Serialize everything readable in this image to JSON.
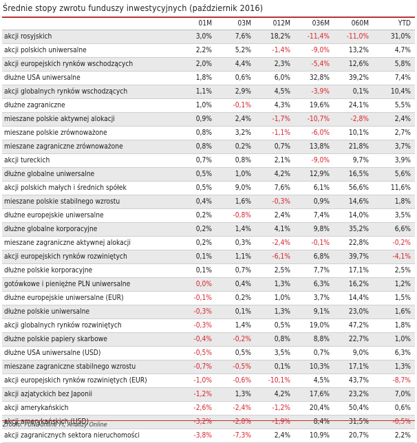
{
  "title": "Średnie stopy zwrotu funduszy inwestycyjnych (październik 2016)",
  "columns": [
    "",
    "01M",
    "03M",
    "012M",
    "036M",
    "060M",
    "YTD"
  ],
  "rows": [
    {
      "name": "akcji rosyjskich",
      "values": [
        "3,0%",
        "7,6%",
        "18,2%",
        "-11,4%",
        "-11,0%",
        "31,0%"
      ]
    },
    {
      "name": "akcji polskich uniwersalne",
      "values": [
        "2,2%",
        "5,2%",
        "-1,4%",
        "-9,0%",
        "13,2%",
        "4,7%"
      ]
    },
    {
      "name": "akcji europejskich rynków wschodzących",
      "values": [
        "2,0%",
        "4,4%",
        "2,3%",
        "-5,4%",
        "12,6%",
        "5,8%"
      ]
    },
    {
      "name": "dłużne USA uniwersalne",
      "values": [
        "1,8%",
        "0,6%",
        "6,0%",
        "32,8%",
        "39,2%",
        "7,4%"
      ]
    },
    {
      "name": "akcji globalnych rynków wschodzących",
      "values": [
        "1,1%",
        "2,9%",
        "4,5%",
        "-3,9%",
        "0,1%",
        "10,4%"
      ]
    },
    {
      "name": "dłużne zagraniczne",
      "values": [
        "1,0%",
        "-0,1%",
        "4,3%",
        "19,6%",
        "24,1%",
        "5,5%"
      ]
    },
    {
      "name": "mieszane polskie aktywnej alokacji",
      "values": [
        "0,9%",
        "2,4%",
        "-1,7%",
        "-10,7%",
        "-2,8%",
        "2,4%"
      ]
    },
    {
      "name": "mieszane polskie zrównoważone",
      "values": [
        "0,8%",
        "3,2%",
        "-1,1%",
        "-6,0%",
        "10,1%",
        "2,7%"
      ]
    },
    {
      "name": "mieszane zagraniczne zrównoważone",
      "values": [
        "0,8%",
        "0,2%",
        "0,7%",
        "13,8%",
        "21,8%",
        "3,7%"
      ]
    },
    {
      "name": "akcji tureckich",
      "values": [
        "0,7%",
        "0,8%",
        "2,1%",
        "-9,0%",
        "9,7%",
        "3,9%"
      ]
    },
    {
      "name": "dłużne globalne uniwersalne",
      "values": [
        "0,5%",
        "1,0%",
        "4,2%",
        "12,9%",
        "16,5%",
        "5,6%"
      ]
    },
    {
      "name": "akcji polskich małych i średnich spółek",
      "values": [
        "0,5%",
        "9,0%",
        "7,6%",
        "6,1%",
        "56,6%",
        "11,6%"
      ]
    },
    {
      "name": "mieszane polskie stabilnego wzrostu",
      "values": [
        "0,4%",
        "1,6%",
        "-0,3%",
        "0,9%",
        "14,6%",
        "1,8%"
      ]
    },
    {
      "name": "dłużne europejskie uniwersalne",
      "values": [
        "0,2%",
        "-0,8%",
        "2,4%",
        "7,4%",
        "14,0%",
        "3,5%"
      ]
    },
    {
      "name": "dłużne globalne korporacyjne",
      "values": [
        "0,2%",
        "1,4%",
        "4,1%",
        "9,8%",
        "35,2%",
        "6,6%"
      ]
    },
    {
      "name": "mieszane zagraniczne aktywnej alokacji",
      "values": [
        "0,2%",
        "0,3%",
        "-2,4%",
        "-0,1%",
        "22,8%",
        "-0,2%"
      ]
    },
    {
      "name": "akcji europejskich rynków rozwiniętych",
      "values": [
        "0,1%",
        "1,1%",
        "-6,1%",
        "6,8%",
        "39,7%",
        "-4,1%"
      ]
    },
    {
      "name": "dłużne polskie korporacyjne",
      "values": [
        "0,1%",
        "0,7%",
        "2,5%",
        "7,7%",
        "17,1%",
        "2,5%"
      ]
    },
    {
      "name": "gotówkowe i pieniężne PLN uniwersalne",
      "values": [
        "0,0%",
        "0,4%",
        "1,3%",
        "6,3%",
        "16,2%",
        "1,2%"
      ]
    },
    {
      "name": "dłużne europejskie uniwersalne (EUR)",
      "values": [
        "-0,1%",
        "0,2%",
        "1,0%",
        "3,7%",
        "14,4%",
        "1,5%"
      ]
    },
    {
      "name": "dłużne polskie uniwersalne",
      "values": [
        "-0,3%",
        "0,1%",
        "1,3%",
        "9,1%",
        "23,0%",
        "1,6%"
      ]
    },
    {
      "name": "akcji globalnych rynków rozwiniętych",
      "values": [
        "-0,3%",
        "1,4%",
        "0,5%",
        "19,0%",
        "47,2%",
        "1,8%"
      ]
    },
    {
      "name": "dłużne polskie papiery skarbowe",
      "values": [
        "-0,4%",
        "-0,2%",
        "0,8%",
        "8,8%",
        "22,7%",
        "1,0%"
      ]
    },
    {
      "name": "dłużne USA uniwersalne (USD)",
      "values": [
        "-0,5%",
        "0,5%",
        "3,5%",
        "0,7%",
        "9,0%",
        "6,3%"
      ]
    },
    {
      "name": "mieszane zagraniczne stabilnego wzrostu",
      "values": [
        "-0,7%",
        "-0,5%",
        "0,1%",
        "10,3%",
        "17,1%",
        "1,3%"
      ]
    },
    {
      "name": "akcji europejskich rynków rozwiniętych (EUR)",
      "values": [
        "-1,0%",
        "-0,6%",
        "-10,1%",
        "4,5%",
        "43,7%",
        "-8,7%"
      ]
    },
    {
      "name": "akcji azjatyckich bez Japonii",
      "values": [
        "-1,2%",
        "1,3%",
        "4,2%",
        "17,6%",
        "23,2%",
        "7,0%"
      ]
    },
    {
      "name": "akcji amerykańskich",
      "values": [
        "-2,6%",
        "-2,4%",
        "-1,2%",
        "20,4%",
        "50,4%",
        "0,6%"
      ]
    },
    {
      "name": "akcji amerykańskich (USD)",
      "values": [
        "-3,2%",
        "-2,8%",
        "-1,9%",
        "8,4%",
        "31,5%",
        "-0,5%"
      ]
    },
    {
      "name": "akcji zagranicznych sektora nieruchomości",
      "values": [
        "-3,8%",
        "-7,3%",
        "2,4%",
        "10,9%",
        "20,7%",
        "2,2%"
      ]
    }
  ],
  "negative_color": "#d9232d",
  "accent_color": "#b8312f",
  "source": "Źródło: FUNDonline FI, Analizy Online"
}
